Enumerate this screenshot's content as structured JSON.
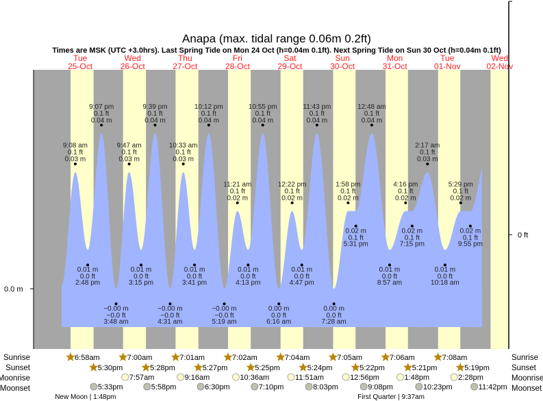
{
  "chart_data": {
    "type": "area",
    "title": "Anapa (max. tidal range 0.06m 0.2ft)",
    "subtitle": "Times are MSK (UTC +3.0hrs). Last Spring Tide on Mon 24 Oct (h=0.04m 0.1ft). Next Spring Tide on Sun 30 Oct (h=0.04m 0.1ft)",
    "ylabel_left_tick": "0.0 m",
    "ylabel_right_tick": "0 ft",
    "colors": {
      "tide": "#a0b4ff",
      "night": "#a6a6a6",
      "day": "#ffffcc",
      "daylabel": "#ff2020",
      "sun": "#b8860b",
      "moonrise": "#ffffcc",
      "moonset": "#c0c0b0"
    },
    "days": [
      {
        "dow": "Tue",
        "date": "25-Oct"
      },
      {
        "dow": "Wed",
        "date": "26-Oct"
      },
      {
        "dow": "Thu",
        "date": "27-Oct"
      },
      {
        "dow": "Fri",
        "date": "28-Oct"
      },
      {
        "dow": "Sat",
        "date": "29-Oct"
      },
      {
        "dow": "Sun",
        "date": "30-Oct"
      },
      {
        "dow": "Mon",
        "date": "31-Oct"
      },
      {
        "dow": "Tue",
        "date": "01-Nov"
      },
      {
        "dow": "Wed",
        "date": "02-Nov"
      }
    ],
    "tides": [
      {
        "time": "9:08 am",
        "day": 0,
        "hour": 9.133,
        "m": "0.03 m",
        "ft": "0.1 ft",
        "h": 0.03,
        "type": "high"
      },
      {
        "time": "2:48 pm",
        "day": 0,
        "hour": 14.8,
        "m": "0.01 m",
        "ft": "0.0 ft",
        "h": 0.01,
        "type": "low"
      },
      {
        "time": "9:07 pm",
        "day": 0,
        "hour": 21.117,
        "m": "0.04 m",
        "ft": "0.1 ft",
        "h": 0.04,
        "type": "high"
      },
      {
        "time": "3:48 am",
        "day": 1,
        "hour": 3.8,
        "m": "−0.00 m",
        "ft": "−0.0 ft",
        "h": 0.0,
        "type": "low"
      },
      {
        "time": "9:47 am",
        "day": 1,
        "hour": 9.783,
        "m": "0.03 m",
        "ft": "0.1 ft",
        "h": 0.03,
        "type": "high"
      },
      {
        "time": "3:15 pm",
        "day": 1,
        "hour": 15.25,
        "m": "0.01 m",
        "ft": "0.0 ft",
        "h": 0.01,
        "type": "low"
      },
      {
        "time": "9:39 pm",
        "day": 1,
        "hour": 21.65,
        "m": "0.04 m",
        "ft": "0.1 ft",
        "h": 0.04,
        "type": "high"
      },
      {
        "time": "4:31 am",
        "day": 2,
        "hour": 4.517,
        "m": "−0.00 m",
        "ft": "−0.0 ft",
        "h": 0.0,
        "type": "low"
      },
      {
        "time": "10:33 am",
        "day": 2,
        "hour": 10.55,
        "m": "0.03 m",
        "ft": "0.1 ft",
        "h": 0.03,
        "type": "high"
      },
      {
        "time": "3:41 pm",
        "day": 2,
        "hour": 15.683,
        "m": "0.01 m",
        "ft": "0.0 ft",
        "h": 0.01,
        "type": "low"
      },
      {
        "time": "10:12 pm",
        "day": 2,
        "hour": 22.2,
        "m": "0.04 m",
        "ft": "0.1 ft",
        "h": 0.04,
        "type": "high"
      },
      {
        "time": "5:19 am",
        "day": 3,
        "hour": 5.317,
        "m": "−0.00 m",
        "ft": "−0.0 ft",
        "h": 0.0,
        "type": "low"
      },
      {
        "time": "11:21 am",
        "day": 3,
        "hour": 11.35,
        "m": "0.02 m",
        "ft": "0.1 ft",
        "h": 0.02,
        "type": "high"
      },
      {
        "time": "4:13 pm",
        "day": 3,
        "hour": 16.217,
        "m": "0.01 m",
        "ft": "0.0 ft",
        "h": 0.01,
        "type": "low"
      },
      {
        "time": "10:55 pm",
        "day": 3,
        "hour": 22.917,
        "m": "0.04 m",
        "ft": "0.1 ft",
        "h": 0.04,
        "type": "high"
      },
      {
        "time": "6:16 am",
        "day": 4,
        "hour": 6.267,
        "m": "0.00 m",
        "ft": "0.0 ft",
        "h": 0.0,
        "type": "low"
      },
      {
        "time": "12:22 pm",
        "day": 4,
        "hour": 12.367,
        "m": "0.02 m",
        "ft": "0.1 ft",
        "h": 0.02,
        "type": "high"
      },
      {
        "time": "4:47 pm",
        "day": 4,
        "hour": 16.783,
        "m": "0.01 m",
        "ft": "0.0 ft",
        "h": 0.01,
        "type": "low"
      },
      {
        "time": "11:43 pm",
        "day": 4,
        "hour": 23.717,
        "m": "0.04 m",
        "ft": "0.1 ft",
        "h": 0.04,
        "type": "high"
      },
      {
        "time": "7:28 am",
        "day": 5,
        "hour": 7.467,
        "m": "0.00 m",
        "ft": "0.0 ft",
        "h": 0.0,
        "type": "low"
      },
      {
        "time": "1:58 pm",
        "day": 5,
        "hour": 13.967,
        "m": "0.02 m",
        "ft": "0.1 ft",
        "h": 0.02,
        "type": "high"
      },
      {
        "time": "5:31 pm",
        "day": 5,
        "hour": 17.517,
        "m": "0.02 m",
        "ft": "0.1 ft",
        "h": 0.02,
        "type": "low"
      },
      {
        "time": "12:48 am",
        "day": 6,
        "hour": 0.8,
        "m": "0.04 m",
        "ft": "0.1 ft",
        "h": 0.04,
        "type": "high"
      },
      {
        "time": "8:57 am",
        "day": 6,
        "hour": 8.95,
        "m": "0.01 m",
        "ft": "0.0 ft",
        "h": 0.01,
        "type": "low"
      },
      {
        "time": "4:16 pm",
        "day": 6,
        "hour": 16.267,
        "m": "0.02 m",
        "ft": "0.1 ft",
        "h": 0.02,
        "type": "high"
      },
      {
        "time": "7:15 pm",
        "day": 6,
        "hour": 19.25,
        "m": "0.02 m",
        "ft": "0.1 ft",
        "h": 0.02,
        "type": "low"
      },
      {
        "time": "2:17 am",
        "day": 7,
        "hour": 2.283,
        "m": "0.03 m",
        "ft": "0.1 ft",
        "h": 0.03,
        "type": "high"
      },
      {
        "time": "10:18 am",
        "day": 7,
        "hour": 10.3,
        "m": "0.01 m",
        "ft": "0.0 ft",
        "h": 0.01,
        "type": "low"
      },
      {
        "time": "5:29 pm",
        "day": 7,
        "hour": 17.483,
        "m": "0.02 m",
        "ft": "0.1 ft",
        "h": 0.02,
        "type": "high"
      },
      {
        "time": "9:55 pm",
        "day": 7,
        "hour": 21.917,
        "m": "0.02 m",
        "ft": "0.1 ft",
        "h": 0.02,
        "type": "low"
      }
    ],
    "sunrise": [
      {
        "day": 0,
        "hour": 6.967,
        "label": "6:58am"
      },
      {
        "day": 1,
        "hour": 7.0,
        "label": "7:00am"
      },
      {
        "day": 2,
        "hour": 7.017,
        "label": "7:01am"
      },
      {
        "day": 3,
        "hour": 7.033,
        "label": "7:02am"
      },
      {
        "day": 4,
        "hour": 7.067,
        "label": "7:04am"
      },
      {
        "day": 5,
        "hour": 7.083,
        "label": "7:05am"
      },
      {
        "day": 6,
        "hour": 7.1,
        "label": "7:06am"
      },
      {
        "day": 7,
        "hour": 7.133,
        "label": "7:08am"
      }
    ],
    "sunset": [
      {
        "day": 0,
        "hour": 17.5,
        "label": "5:30pm"
      },
      {
        "day": 1,
        "hour": 17.467,
        "label": "5:28pm"
      },
      {
        "day": 2,
        "hour": 17.45,
        "label": "5:27pm"
      },
      {
        "day": 3,
        "hour": 17.417,
        "label": "5:25pm"
      },
      {
        "day": 4,
        "hour": 17.4,
        "label": "5:24pm"
      },
      {
        "day": 5,
        "hour": 17.367,
        "label": "5:22pm"
      },
      {
        "day": 6,
        "hour": 17.35,
        "label": "5:21pm"
      },
      {
        "day": 7,
        "hour": 17.317,
        "label": "5:19pm"
      }
    ],
    "moonrise": [
      {
        "day": 1,
        "hour": 7.95,
        "label": "7:57am"
      },
      {
        "day": 2,
        "hour": 9.267,
        "label": "9:16am"
      },
      {
        "day": 3,
        "hour": 10.6,
        "label": "10:36am"
      },
      {
        "day": 4,
        "hour": 11.85,
        "label": "11:51am"
      },
      {
        "day": 5,
        "hour": 12.933,
        "label": "12:56pm"
      },
      {
        "day": 6,
        "hour": 13.8,
        "label": "1:48pm"
      },
      {
        "day": 7,
        "hour": 14.467,
        "label": "2:28pm"
      }
    ],
    "moonset": [
      {
        "day": 0,
        "hour": 17.55,
        "label": "5:33pm"
      },
      {
        "day": 1,
        "hour": 17.967,
        "label": "5:58pm"
      },
      {
        "day": 2,
        "hour": 18.5,
        "label": "6:30pm"
      },
      {
        "day": 3,
        "hour": 19.167,
        "label": "7:10pm"
      },
      {
        "day": 4,
        "hour": 20.05,
        "label": "8:03pm"
      },
      {
        "day": 5,
        "hour": 21.133,
        "label": "9:08pm"
      },
      {
        "day": 6,
        "hour": 22.383,
        "label": "10:23pm"
      },
      {
        "day": 7,
        "hour": 23.7,
        "label": "11:42pm"
      }
    ],
    "moon_phases": [
      {
        "day": 0,
        "hour": 13.8,
        "label": "New Moon | 1:48pm"
      },
      {
        "day": 6,
        "hour": 9.617,
        "label": "First Quarter | 9:37am"
      }
    ],
    "row_labels": {
      "sunrise": "Sunrise",
      "sunset": "Sunset",
      "moonrise": "Moonrise",
      "moonset": "Moonset"
    }
  }
}
